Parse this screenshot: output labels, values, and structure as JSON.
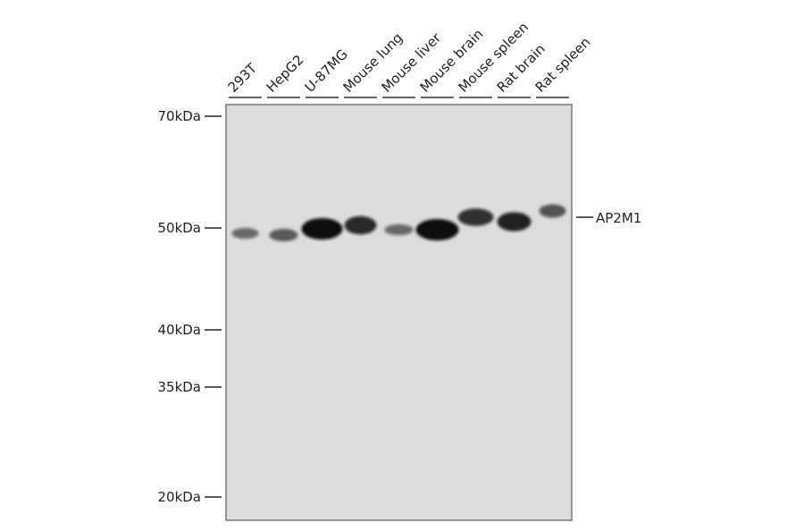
{
  "lanes": [
    "293T",
    "HepG2",
    "U-87MG",
    "Mouse lung",
    "Mouse liver",
    "Mouse brain",
    "Mouse spleen",
    "Rat brain",
    "Rat spleen"
  ],
  "markers": [
    {
      "label": "70kDa",
      "kda": 70
    },
    {
      "label": "50kDa",
      "kda": 50
    },
    {
      "label": "40kDa",
      "kda": 40
    },
    {
      "label": "35kDa",
      "kda": 35
    },
    {
      "label": "20kDa",
      "kda": 20
    }
  ],
  "target": {
    "label": "AP2M1"
  },
  "band_intensity": [
    0.35,
    0.45,
    1.0,
    0.8,
    0.35,
    1.0,
    0.75,
    0.85,
    0.5
  ],
  "colors": {
    "membrane": "#dcdcdc",
    "band": "#111111",
    "text": "#222222"
  }
}
